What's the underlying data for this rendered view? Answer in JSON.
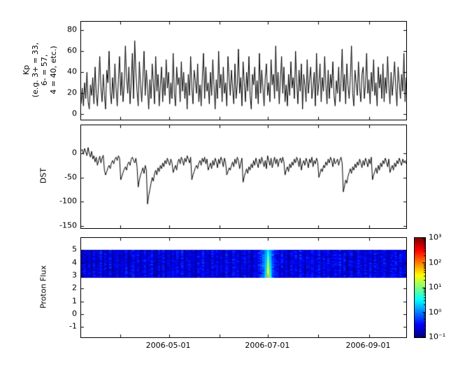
{
  "x_axis": {
    "start_date": "2006-03-08",
    "end_date": "2006-09-24",
    "tick_dates": [
      "2006-04-01",
      "2006-05-01",
      "2006-06-01",
      "2006-07-01",
      "2006-08-01",
      "2006-09-01"
    ],
    "label_dates": [
      "2006-05-01",
      "2006-07-01",
      "2006-09-01"
    ]
  },
  "colorbar": {
    "orientation": "vertical",
    "colormap": "jet",
    "tick_labels": [
      "10³",
      "10²",
      "10¹",
      "10⁰",
      "10⁻¹"
    ],
    "tick_exponents": [
      3,
      2,
      1,
      0,
      -1
    ]
  },
  "chart_data": [
    {
      "type": "line",
      "panel": "kp",
      "ylabel_lines": [
        "Kp",
        "(e.g. 3+ = 33,",
        "6- = 57,",
        "4 = 40, etc.)"
      ],
      "ylim": [
        -5,
        88
      ],
      "yticks": [
        80,
        60,
        40,
        20,
        0
      ],
      "line_color": "#000000",
      "values": [
        10,
        25,
        8,
        30,
        15,
        40,
        12,
        5,
        28,
        18,
        35,
        10,
        45,
        20,
        8,
        30,
        55,
        25,
        12,
        38,
        18,
        5,
        42,
        30,
        60,
        22,
        10,
        35,
        15,
        48,
        25,
        8,
        33,
        55,
        18,
        40,
        12,
        28,
        65,
        35,
        20,
        45,
        10,
        30,
        58,
        15,
        70,
        40,
        22,
        8,
        50,
        28,
        12,
        35,
        60,
        18,
        42,
        25,
        5,
        33,
        15,
        48,
        30,
        10,
        55,
        22,
        38,
        8,
        28,
        45,
        12,
        35,
        18,
        52,
        25,
        40,
        10,
        30,
        15,
        58,
        20,
        8,
        45,
        28,
        35,
        12,
        50,
        22,
        40,
        15,
        30,
        5,
        38,
        18,
        55,
        25,
        10,
        42,
        32,
        20,
        48,
        12,
        28,
        8,
        35,
        58,
        15,
        45,
        22,
        30,
        10,
        40,
        18,
        52,
        28,
        5,
        33,
        15,
        60,
        25,
        38,
        12,
        45,
        20,
        30,
        8,
        55,
        35,
        18,
        42,
        25,
        10,
        48,
        15,
        28,
        62,
        20,
        35,
        8,
        50,
        30,
        12,
        40,
        22,
        55,
        18,
        5,
        38,
        28,
        45,
        15,
        32,
        10,
        58,
        20,
        42,
        25,
        8,
        35,
        48,
        18,
        30,
        12,
        52,
        28,
        38,
        15,
        65,
        22,
        40,
        10,
        33,
        55,
        20,
        45,
        12,
        28,
        8,
        38,
        18,
        50,
        25,
        35,
        15,
        60,
        30,
        10,
        42,
        22,
        48,
        5,
        38,
        28,
        12,
        52,
        20,
        33,
        45,
        15,
        25,
        40,
        8,
        58,
        18,
        30,
        48,
        12,
        35,
        22,
        55,
        28,
        10,
        42,
        15,
        38,
        25,
        50,
        18,
        8,
        32,
        20,
        45,
        12,
        30,
        62,
        22,
        38,
        10,
        48,
        28,
        15,
        35,
        65,
        20,
        8,
        42,
        30,
        18,
        50,
        25,
        12,
        38,
        45,
        15,
        28,
        58,
        20,
        33,
        10,
        40,
        22,
        52,
        18,
        30,
        8,
        45,
        25,
        38,
        15,
        48,
        12,
        35,
        20,
        55,
        28,
        10,
        40,
        18,
        32,
        50,
        25,
        8,
        45,
        30,
        15,
        38,
        22,
        58,
        12,
        35
      ]
    },
    {
      "type": "line",
      "panel": "dst",
      "ylabel": "DST",
      "ylim": [
        -155,
        58
      ],
      "yticks": [
        0,
        -50,
        -100,
        -150
      ],
      "line_color": "#000000",
      "values": [
        5,
        8,
        -2,
        10,
        3,
        -5,
        12,
        0,
        -8,
        4,
        -12,
        -5,
        -18,
        -8,
        -25,
        -15,
        -6,
        -20,
        -10,
        -4,
        -35,
        -45,
        -38,
        -30,
        -25,
        -32,
        -20,
        -15,
        -22,
        -12,
        -8,
        -15,
        -5,
        -10,
        -55,
        -48,
        -40,
        -33,
        -28,
        -35,
        -22,
        -18,
        -25,
        -12,
        -8,
        -15,
        -20,
        -10,
        -28,
        -70,
        -55,
        -45,
        -38,
        -30,
        -42,
        -25,
        -35,
        -105,
        -88,
        -75,
        -62,
        -50,
        -58,
        -42,
        -35,
        -45,
        -30,
        -38,
        -25,
        -32,
        -20,
        -28,
        -15,
        -22,
        -10,
        -18,
        -25,
        -12,
        -20,
        -40,
        -32,
        -25,
        -35,
        -18,
        -12,
        -22,
        -8,
        -15,
        -25,
        -10,
        -18,
        -5,
        -12,
        -20,
        -8,
        -55,
        -45,
        -38,
        -30,
        -25,
        -32,
        -20,
        -15,
        -25,
        -10,
        -18,
        -8,
        -22,
        -12,
        -35,
        -28,
        -20,
        -32,
        -15,
        -25,
        -10,
        -18,
        -30,
        -12,
        -22,
        -8,
        -15,
        -28,
        -10,
        -20,
        -45,
        -38,
        -30,
        -35,
        -25,
        -18,
        -28,
        -12,
        -22,
        -8,
        -15,
        -32,
        -20,
        -10,
        -60,
        -48,
        -40,
        -32,
        -42,
        -28,
        -35,
        -22,
        -30,
        -15,
        -25,
        -10,
        -20,
        -30,
        -12,
        -22,
        -8,
        -18,
        -28,
        -15,
        -32,
        -5,
        -15,
        -25,
        -10,
        -30,
        -18,
        -8,
        -22,
        -12,
        -28,
        -15,
        -10,
        -20,
        -8,
        -18,
        -45,
        -35,
        -28,
        -38,
        -22,
        -30,
        -18,
        -25,
        -12,
        -20,
        -8,
        -15,
        -28,
        -10,
        -35,
        -22,
        -15,
        -25,
        -10,
        -18,
        -30,
        -12,
        -20,
        -8,
        -28,
        -15,
        -22,
        -10,
        -18,
        -50,
        -42,
        -32,
        -38,
        -25,
        -30,
        -18,
        -25,
        -12,
        -20,
        -8,
        -15,
        -28,
        -10,
        -22,
        -18,
        -12,
        -25,
        -15,
        -8,
        -20,
        -80,
        -68,
        -55,
        -62,
        -48,
        -40,
        -32,
        -42,
        -28,
        -35,
        -22,
        -30,
        -18,
        -25,
        -12,
        -20,
        -30,
        -15,
        -25,
        -10,
        -18,
        -28,
        -12,
        -22,
        -8,
        -55,
        -45,
        -38,
        -30,
        -42,
        -25,
        -35,
        -20,
        -28,
        -15,
        -22,
        -10,
        -18,
        -28,
        -12,
        -40,
        -32,
        -25,
        -35,
        -20,
        -28,
        -15,
        -22,
        -10,
        -18,
        -25,
        -12,
        -20,
        -15,
        -22
      ]
    },
    {
      "type": "heatmap",
      "panel": "proton_flux",
      "ylabel": "Proton Flux",
      "ylim": [
        -1.8,
        5.95
      ],
      "yticks": [
        5,
        4,
        3,
        2,
        1,
        0,
        -1
      ],
      "band": [
        2.9,
        5.0
      ],
      "colormap": "jet",
      "clim_log10": [
        -1,
        3
      ],
      "event": {
        "date": "2006-07-01",
        "peak_log10_flux": 1.4
      },
      "columns_log10_flux": [
        -0.7,
        -0.55,
        -0.75,
        -0.6,
        -0.8,
        -0.5,
        -0.7,
        -0.65,
        -0.45,
        -0.75,
        -0.6,
        -0.7,
        -0.5,
        -0.8,
        -0.65,
        -0.55,
        -0.75,
        -0.6,
        -0.7,
        -0.45,
        -0.8,
        -0.6,
        -0.5,
        -0.7,
        -0.55,
        -0.75,
        -0.65,
        -0.5,
        -0.7,
        -0.6,
        -0.45,
        -0.7,
        -0.8,
        -0.55,
        -0.65,
        -0.5,
        -0.75,
        -0.6,
        -0.7,
        -0.55,
        -0.65,
        -0.5,
        -0.7,
        -0.45,
        -0.75,
        -0.6,
        -0.55,
        -0.7,
        -0.65,
        -0.8,
        -0.55,
        -0.65,
        -0.45,
        -0.7,
        -0.6,
        -0.75,
        -0.5,
        -0.65,
        -0.55,
        -0.7,
        -0.6,
        -0.75,
        -0.5,
        -0.65,
        -0.7,
        -0.45,
        -0.6,
        -0.55,
        -0.75,
        -0.65,
        -0.5,
        -0.7,
        -0.6,
        -0.8,
        -0.55,
        -0.65,
        -0.45,
        -0.3,
        -0.1,
        0.3,
        1.4,
        0.4,
        -0.2,
        -0.4,
        -0.55,
        -0.65,
        -0.5,
        -0.7,
        -0.6,
        -0.75,
        -0.55,
        -0.65,
        -0.5,
        -0.7,
        -0.45,
        -0.6,
        -0.75,
        -0.55,
        -0.65,
        -0.5,
        -0.7,
        -0.6,
        -0.45,
        -0.75,
        -0.55,
        -0.65,
        -0.5,
        -0.7,
        -0.6,
        -0.55,
        -0.65,
        -0.45,
        -0.7,
        -0.5,
        -0.8,
        -0.6,
        -0.55,
        -0.75,
        -0.65,
        -0.5,
        -0.6,
        -0.7,
        -0.55,
        -0.65,
        -0.45,
        -0.75,
        -0.5,
        -0.6,
        -0.7,
        -0.55,
        -0.5,
        -0.65,
        -0.75,
        -0.55,
        -0.6,
        -0.45,
        -0.7,
        -0.5,
        -0.65,
        -0.6
      ]
    }
  ]
}
